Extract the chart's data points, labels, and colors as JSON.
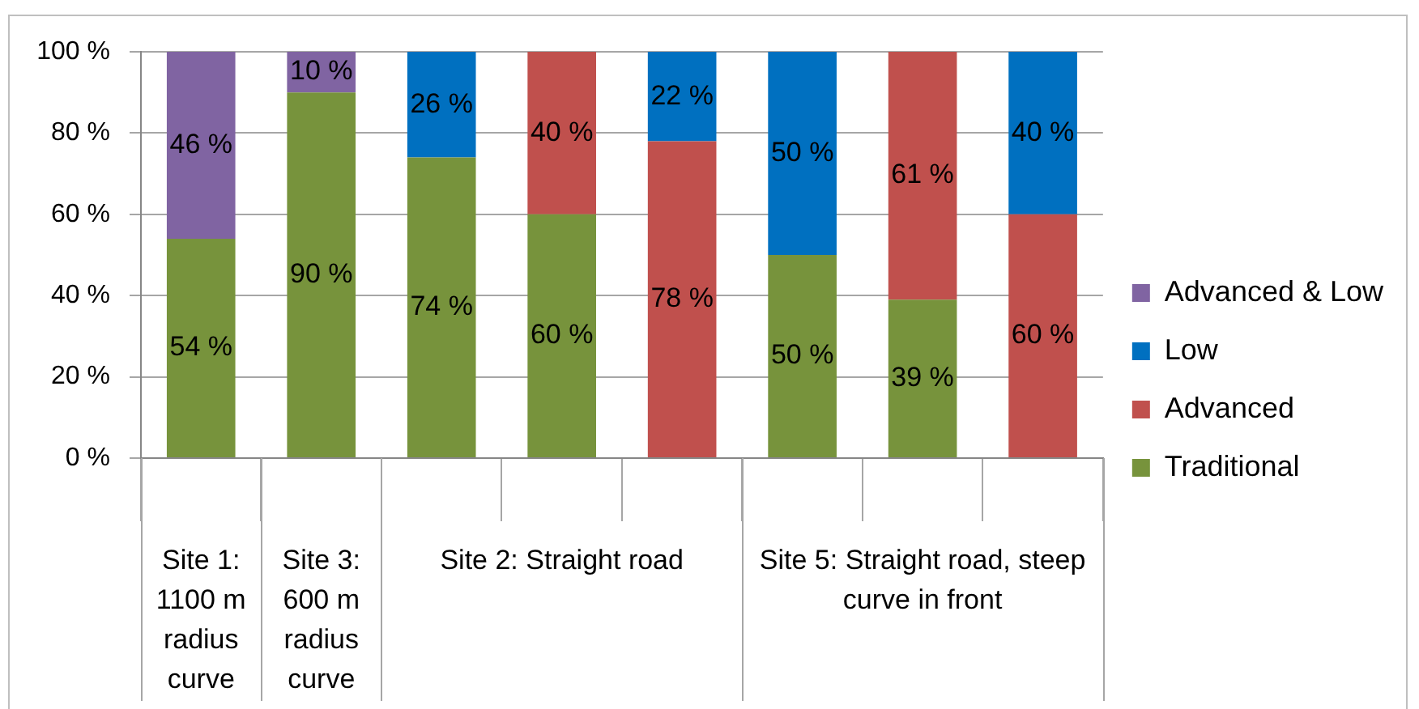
{
  "chart_data": {
    "type": "bar",
    "stacked": true,
    "categories": [
      "Site 1: 1100 m radius curve",
      "Site 3: 600 m radius curve",
      null,
      "Site 2: Straight road",
      null,
      null,
      "Site 5: Straight road, steep curve in front",
      null
    ],
    "series": [
      {
        "name": "Traditional",
        "color": "#77933c",
        "values": [
          54,
          90,
          74,
          60,
          null,
          50,
          39,
          null
        ],
        "value_labels": [
          "54 %",
          "90 %",
          "74 %",
          "60 %",
          null,
          "50 %",
          "39 %",
          null
        ]
      },
      {
        "name": "Advanced",
        "color": "#c0504d",
        "values": [
          null,
          null,
          null,
          40,
          78,
          null,
          61,
          60
        ],
        "value_labels": [
          null,
          null,
          null,
          "40 %",
          "78 %",
          null,
          "61 %",
          "60 %"
        ]
      },
      {
        "name": "Low",
        "color": "#0070c0",
        "values": [
          null,
          null,
          26,
          null,
          22,
          50,
          null,
          40
        ],
        "value_labels": [
          null,
          null,
          "26 %",
          null,
          "22 %",
          "50 %",
          null,
          "40 %"
        ]
      },
      {
        "name": "Advanced & Low",
        "color": "#8064a2",
        "values": [
          46,
          10,
          null,
          null,
          null,
          null,
          null,
          null
        ],
        "value_labels": [
          "46 %",
          "10 %",
          null,
          null,
          null,
          null,
          null,
          null
        ]
      }
    ],
    "ylim": [
      0,
      100
    ],
    "yticks": [
      {
        "value": 0,
        "label": "0 %"
      },
      {
        "value": 20,
        "label": "20 %"
      },
      {
        "value": 40,
        "label": "40 %"
      },
      {
        "value": 60,
        "label": "60 %"
      },
      {
        "value": 80,
        "label": "80 %"
      },
      {
        "value": 100,
        "label": "100 %"
      }
    ],
    "grid": "y",
    "legend": "right"
  }
}
